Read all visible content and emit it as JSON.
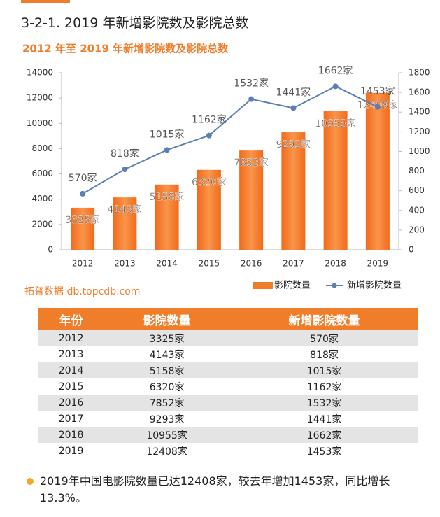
{
  "header": {
    "title": "3-2-1. 2019 年新增影院数及影院总数"
  },
  "chart_data": {
    "type": "bar",
    "title": "2012 年至 2019 年新增影院数及影院总数",
    "categories": [
      "2012",
      "2013",
      "2014",
      "2015",
      "2016",
      "2017",
      "2018",
      "2019"
    ],
    "series": [
      {
        "name": "影院数量",
        "type": "bar",
        "color": "#f07d2a",
        "values": [
          3325,
          4143,
          5158,
          6320,
          7852,
          9293,
          10955,
          12408
        ],
        "value_labels": [
          "3325家",
          "4143家",
          "5158家",
          "6320家",
          "7852家",
          "9293家",
          "10955家",
          "12408家"
        ]
      },
      {
        "name": "新增影院数量",
        "type": "line",
        "axis": "y2",
        "color": "#5b7fb5",
        "values": [
          570,
          818,
          1015,
          1162,
          1532,
          1441,
          1662,
          1453
        ],
        "value_labels": [
          "570家",
          "818家",
          "1015家",
          "1162家",
          "1532家",
          "1441家",
          "1662家",
          "1453家"
        ]
      }
    ],
    "ylim": [
      0,
      14000
    ],
    "yticks": [
      0,
      2000,
      4000,
      6000,
      8000,
      10000,
      12000,
      14000
    ],
    "y2lim": [
      0,
      1800
    ],
    "y2ticks": [
      0,
      200,
      400,
      600,
      800,
      1000,
      1200,
      1400,
      1600,
      1800
    ],
    "legend": "bottom-right"
  },
  "source": "拓普数据 db.topcdb.com",
  "table": {
    "header": [
      "年份",
      "影院数量",
      "新增影院数量"
    ],
    "rows": [
      [
        "2012",
        "3325家",
        "570家"
      ],
      [
        "2013",
        "4143家",
        "818家"
      ],
      [
        "2014",
        "5158家",
        "1015家"
      ],
      [
        "2015",
        "6320家",
        "1162家"
      ],
      [
        "2016",
        "7852家",
        "1532家"
      ],
      [
        "2017",
        "9293家",
        "1441家"
      ],
      [
        "2018",
        "10955家",
        "1662家"
      ],
      [
        "2019",
        "12408家",
        "1453家"
      ]
    ]
  },
  "notes": [
    "2019年中国电影院数量已达12408家，较去年增加1453家，同比增长13.3%。"
  ]
}
